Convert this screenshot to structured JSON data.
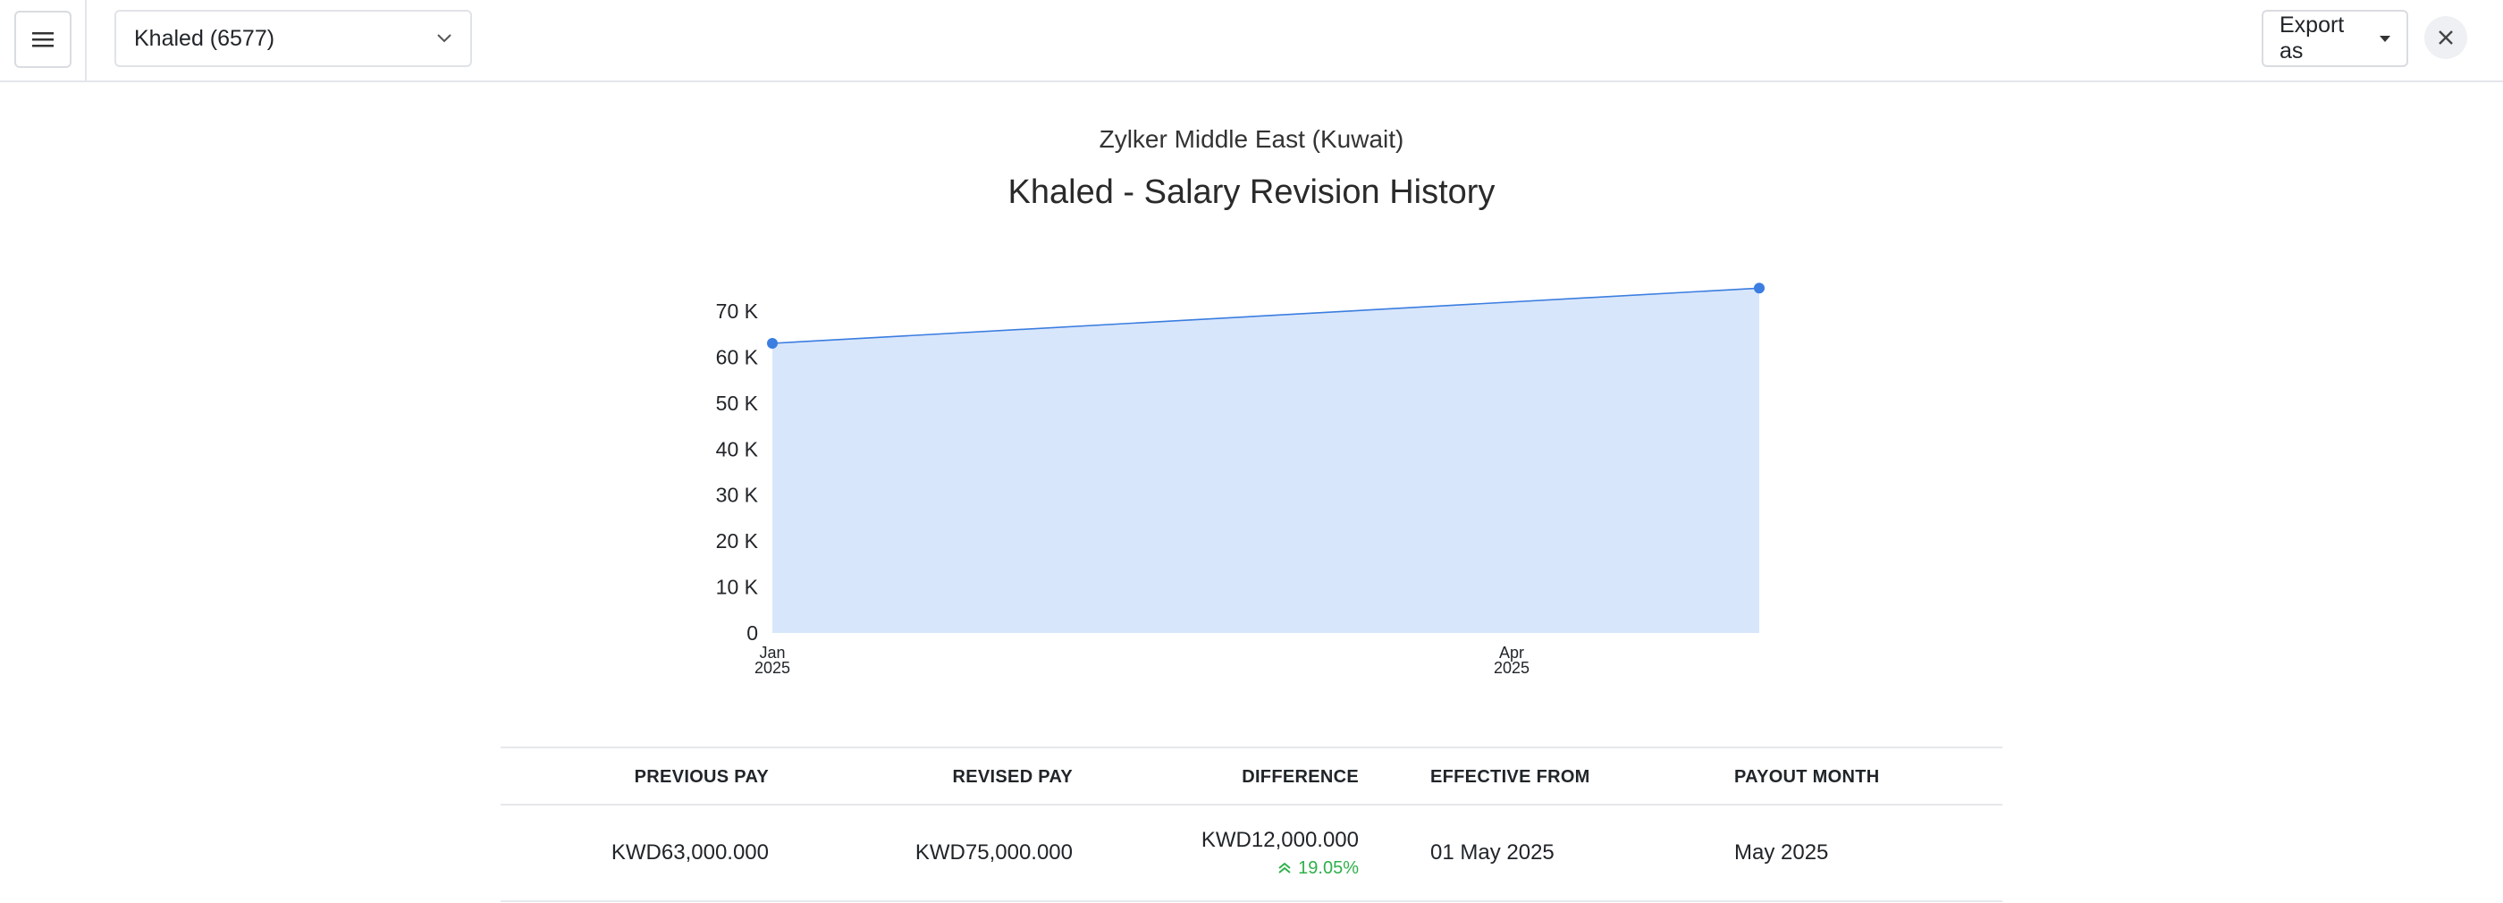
{
  "header": {
    "employee_selected": "Khaled (6577)",
    "export_label": "Export as"
  },
  "report": {
    "organization": "Zylker Middle East (Kuwait)",
    "title": "Khaled - Salary Revision History"
  },
  "colors": {
    "line": "#3b7de0",
    "area": "#d8e6fb",
    "positive": "#2fb04a"
  },
  "chart_data": {
    "type": "area",
    "x": [
      "Jan 2025",
      "Apr 2025"
    ],
    "x_tick_labels": [
      [
        "Jan",
        "2025"
      ],
      [
        "Apr",
        "2025"
      ]
    ],
    "series": [
      {
        "values": [
          63000,
          75000
        ]
      }
    ],
    "y_ticks": [
      "0",
      "10 K",
      "20 K",
      "30 K",
      "40 K",
      "50 K",
      "60 K",
      "70 K"
    ],
    "ylim": [
      0,
      75000
    ],
    "grid": false
  },
  "table": {
    "headers": {
      "previous_pay": "PREVIOUS PAY",
      "revised_pay": "REVISED PAY",
      "difference": "DIFFERENCE",
      "effective_from": "EFFECTIVE FROM",
      "payout_month": "PAYOUT MONTH"
    },
    "rows": [
      {
        "previous_pay": "KWD63,000.000",
        "revised_pay": "KWD75,000.000",
        "difference": "KWD12,000.000",
        "difference_pct": "19.05%",
        "effective_from": "01 May 2025",
        "payout_month": "May 2025"
      }
    ]
  }
}
